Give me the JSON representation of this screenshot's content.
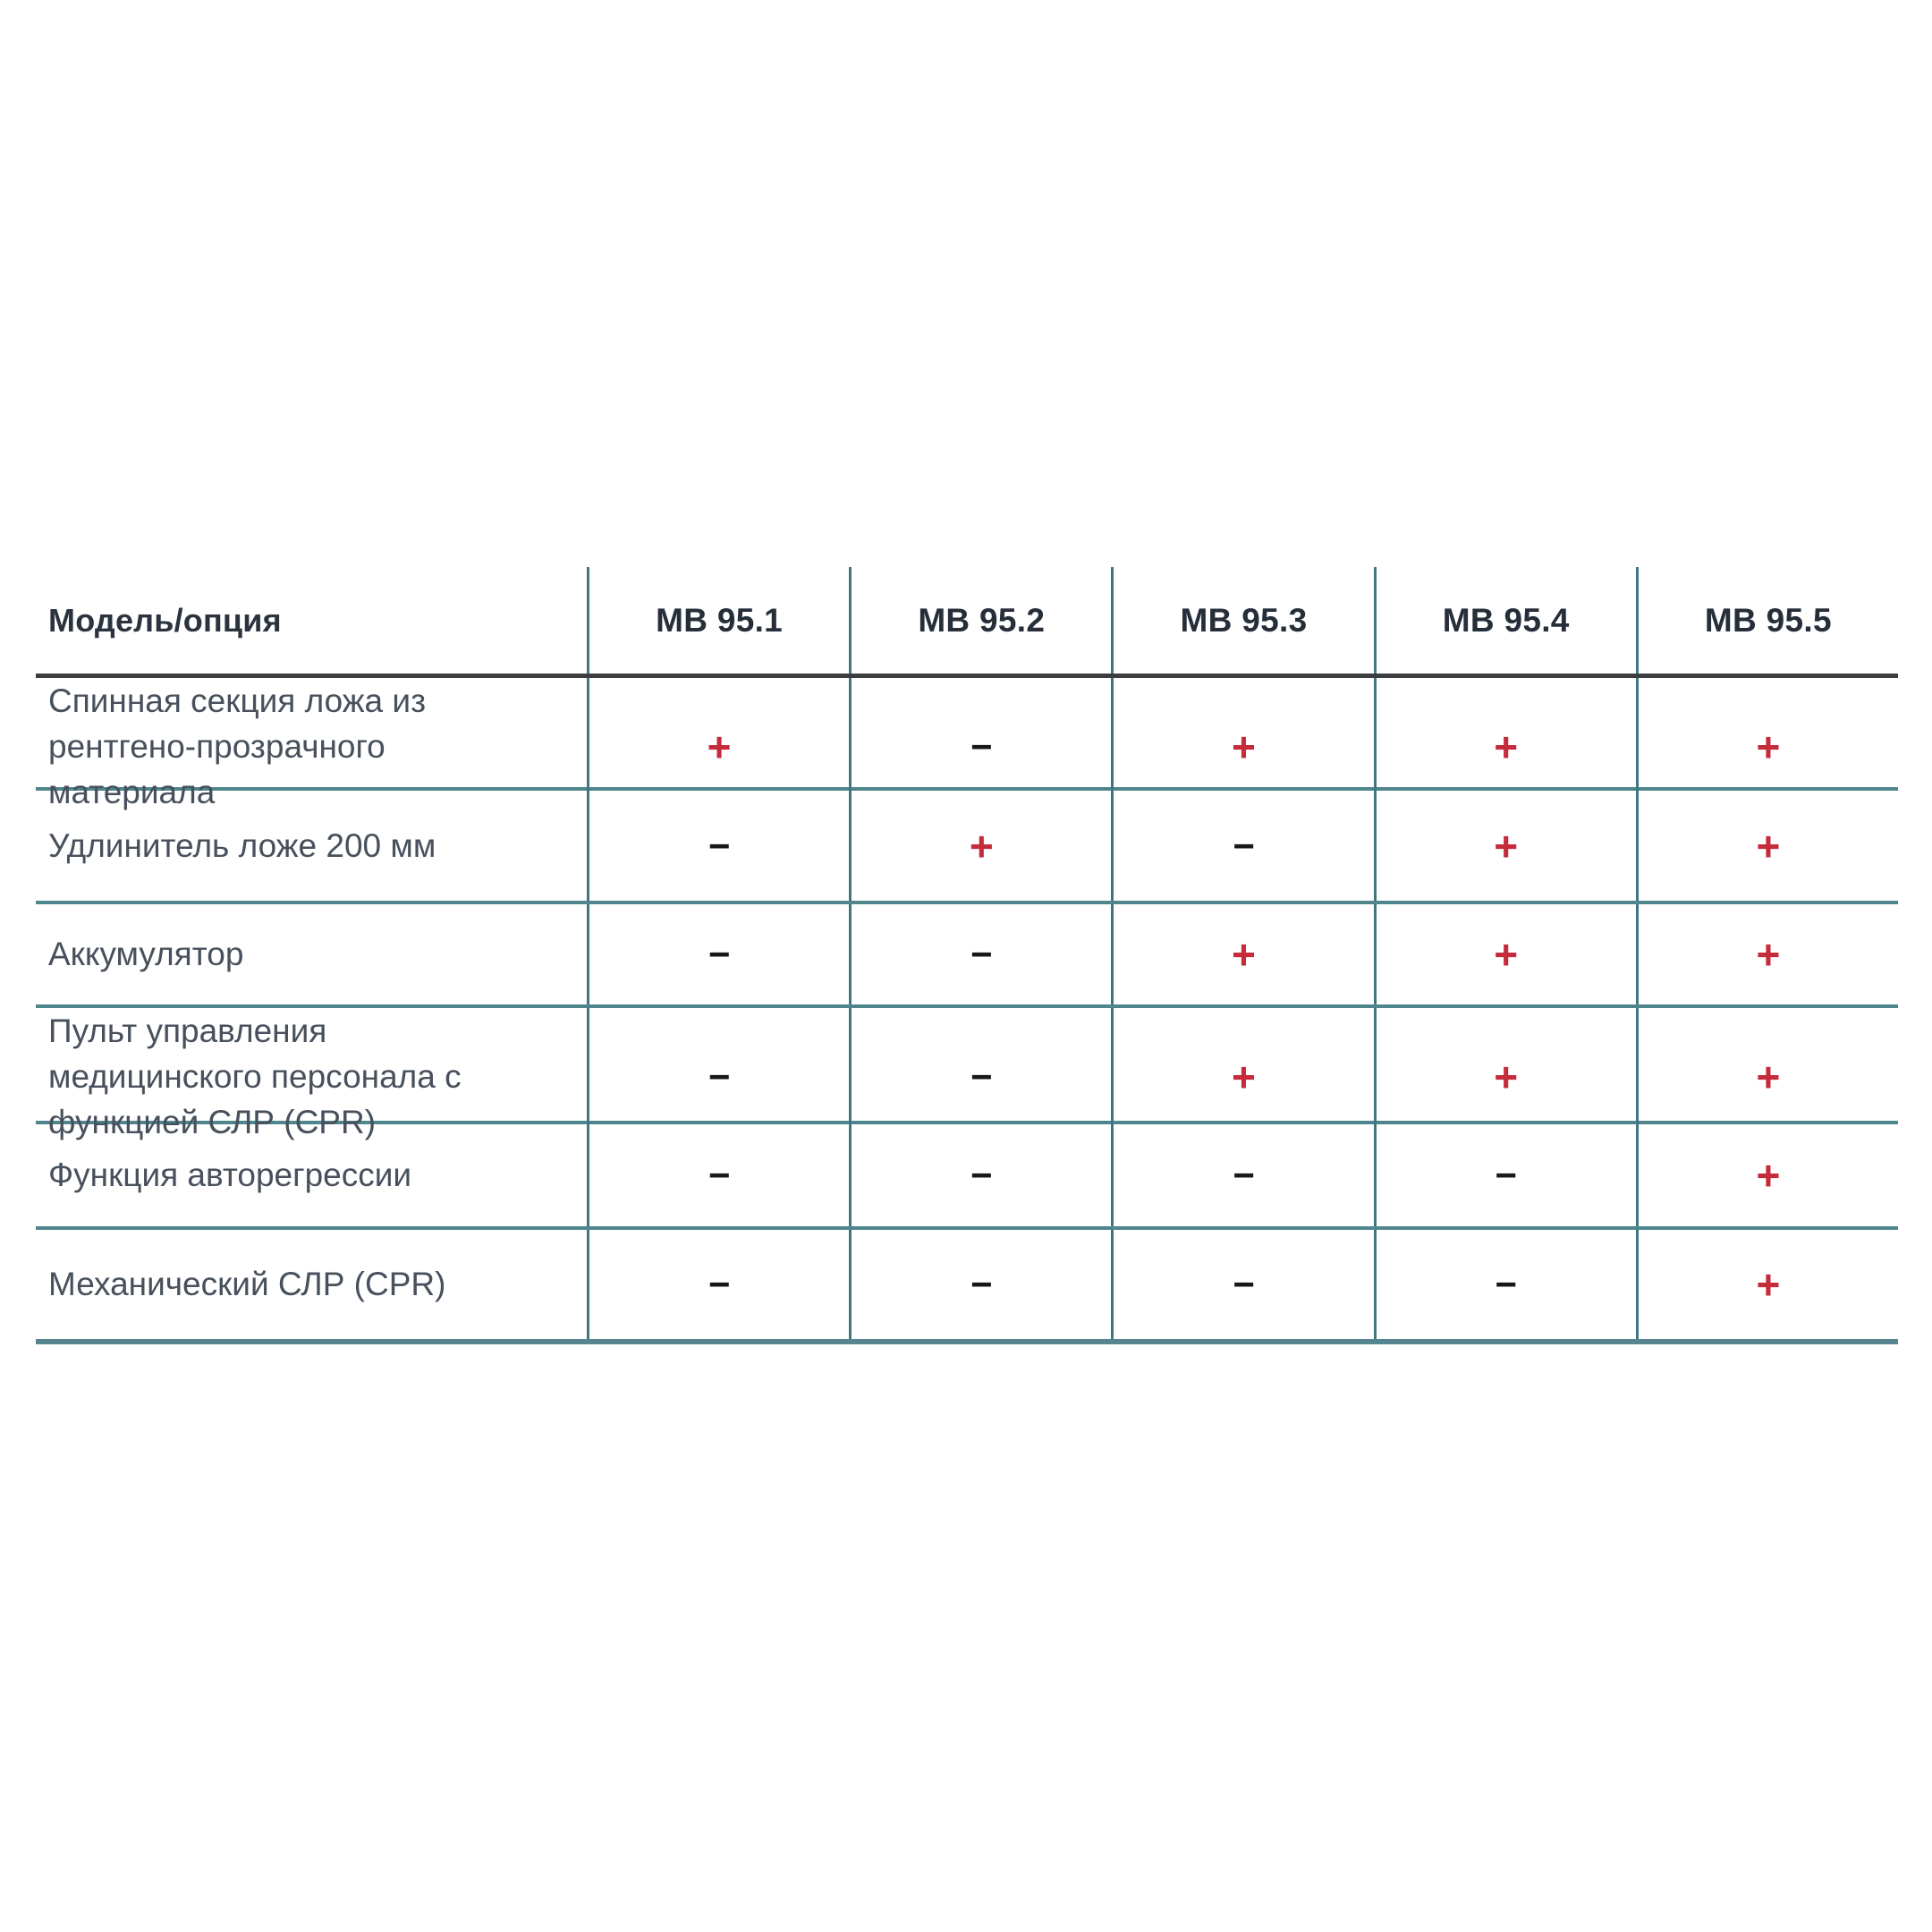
{
  "table": {
    "corner_label": "Модель/опция",
    "columns": [
      "МВ 95.1",
      "МВ 95.2",
      "МВ 95.3",
      "МВ 95.4",
      "МВ 95.5"
    ],
    "rows": [
      {
        "label": "Спинная секция ложа из рентгено-прозрачного материала",
        "values": [
          "+",
          "−",
          "+",
          "+",
          "+"
        ]
      },
      {
        "label": "Удлинитель ложе 200 мм",
        "values": [
          "−",
          "+",
          "−",
          "+",
          "+"
        ]
      },
      {
        "label": "Аккумулятор",
        "values": [
          "−",
          "−",
          "+",
          "+",
          "+"
        ]
      },
      {
        "label": "Пульт управления медицинского персонала с функцией СЛР (CPR)",
        "values": [
          "−",
          "−",
          "+",
          "+",
          "+"
        ]
      },
      {
        "label": "Функция авторегрессии",
        "values": [
          "−",
          "−",
          "−",
          "−",
          "+"
        ]
      },
      {
        "label": "Механический СЛР (CPR)",
        "values": [
          "−",
          "−",
          "−",
          "−",
          "+"
        ]
      }
    ],
    "symbols": {
      "included": "+",
      "not_included": "−"
    }
  },
  "colors": {
    "plus": "#c62b3c",
    "minus": "#17181a",
    "vertical_line": "#3f7680",
    "row_separator": "#4f868e",
    "bottom_border": "#55868f",
    "header_underline": "#3b3d3e",
    "header_text": "#252e39",
    "label_text": "#47505c",
    "background": "#ffffff"
  }
}
